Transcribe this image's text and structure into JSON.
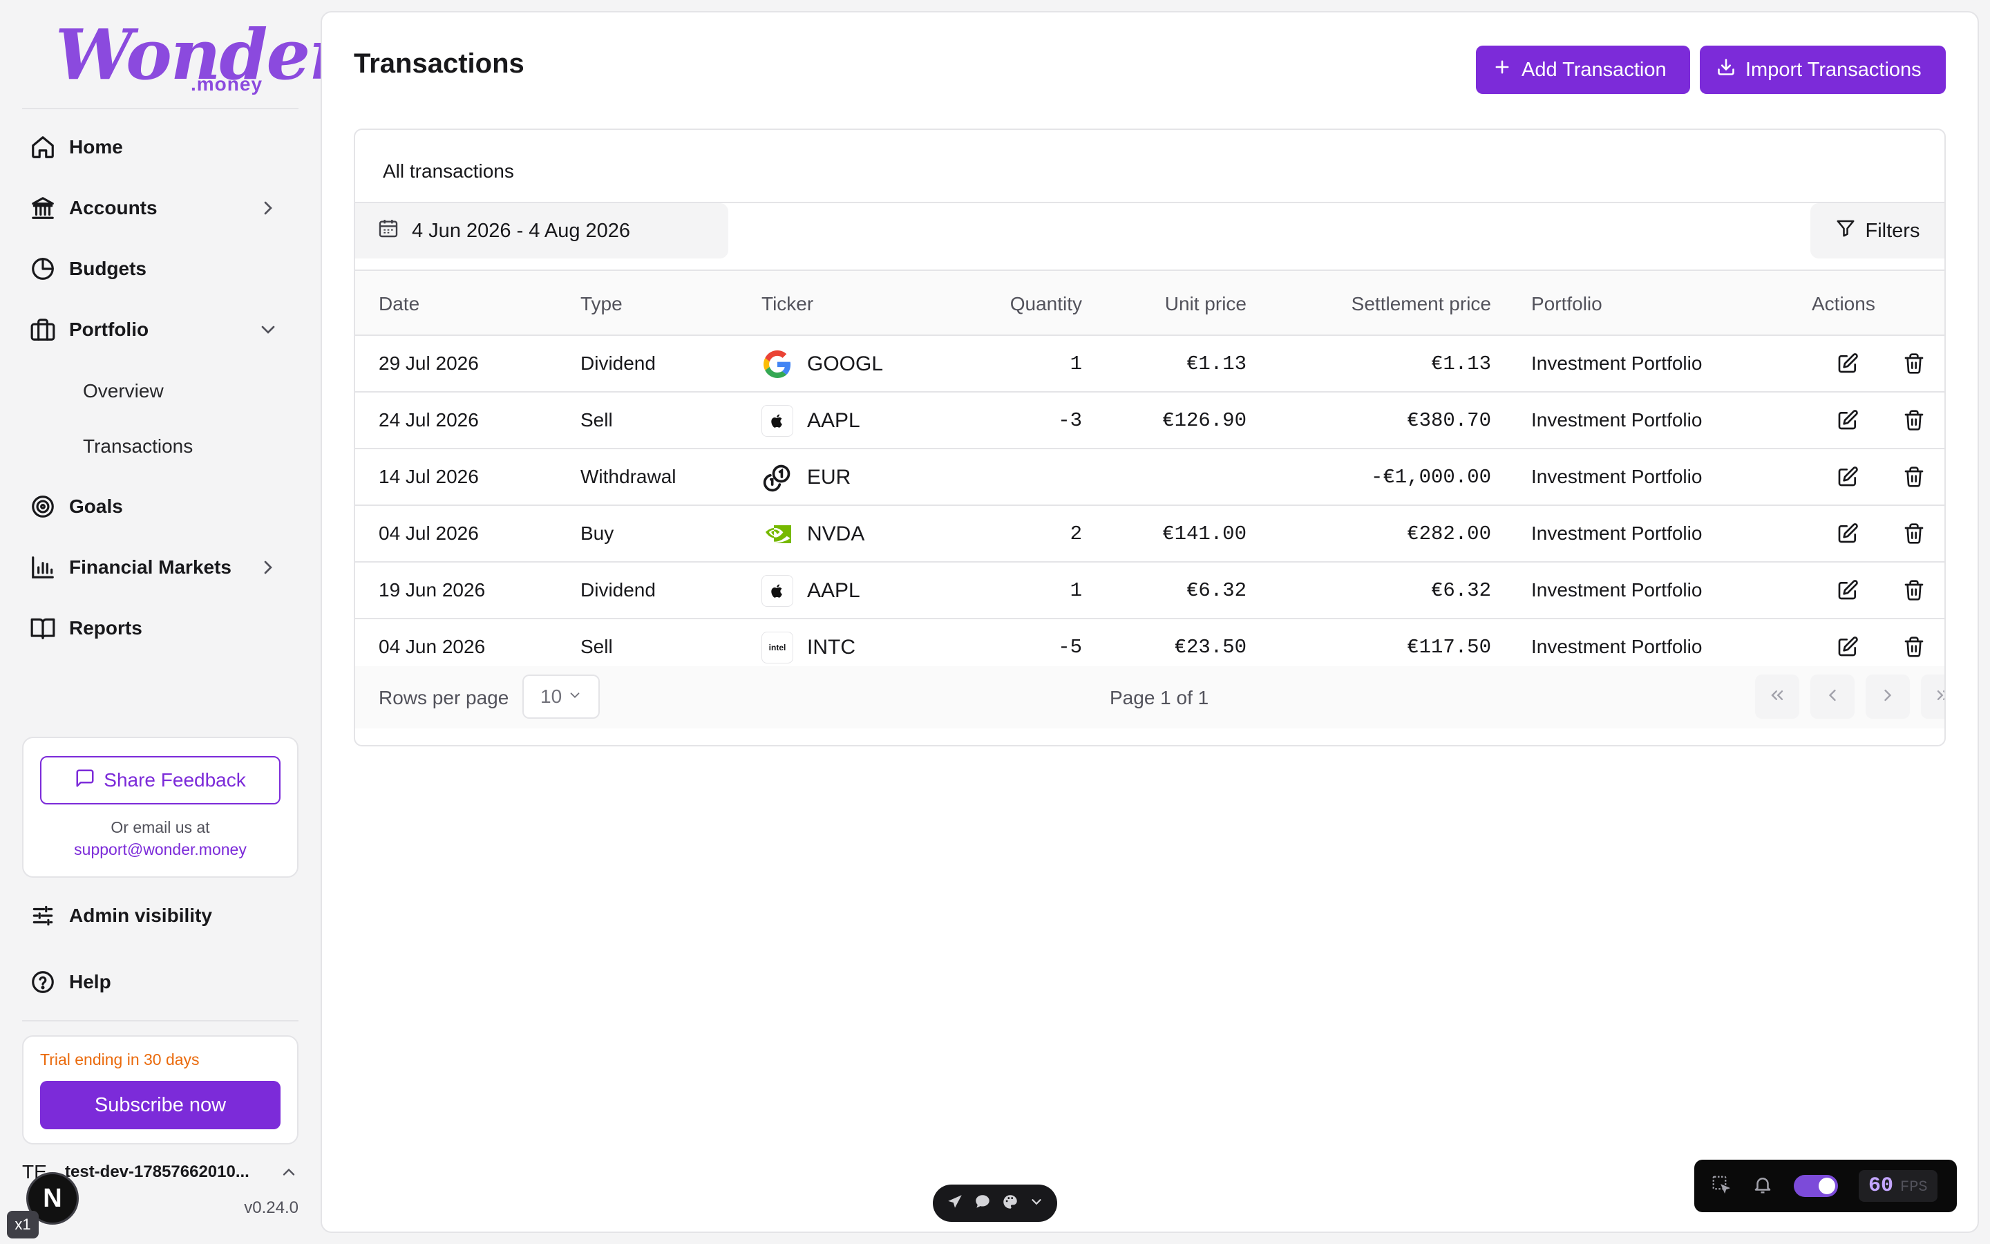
{
  "brand": {
    "logo_main": "Wonder",
    "logo_sub": ".money",
    "accent": "#7c2bd9"
  },
  "nav": {
    "home": "Home",
    "accounts": "Accounts",
    "budgets": "Budgets",
    "portfolio": "Portfolio",
    "portfolio_sub": [
      "Overview",
      "Transactions"
    ],
    "goals": "Goals",
    "financial_markets": "Financial Markets",
    "reports": "Reports",
    "admin_visibility": "Admin visibility",
    "help": "Help"
  },
  "feedback": {
    "button": "Share Feedback",
    "note": "Or email us at",
    "email": "support@wonder.money"
  },
  "trial": {
    "text": "Trial ending in 30 days",
    "button": "Subscribe now"
  },
  "user": {
    "initials": "TE",
    "name": "test-dev-17857662010...",
    "version": "v0.24.0"
  },
  "header": {
    "title": "Transactions",
    "add_button": "Add Transaction",
    "import_button": "Import Transactions"
  },
  "table_card": {
    "title": "All transactions",
    "date_range": "4 Jun 2026 - 4 Aug 2026",
    "filters": "Filters",
    "columns": [
      "Date",
      "Type",
      "Ticker",
      "Quantity",
      "Unit price",
      "Settlement price",
      "Portfolio",
      "Actions"
    ],
    "rows": [
      {
        "date": "29 Jul 2026",
        "type": "Dividend",
        "ticker": "GOOGL",
        "logo": "google-logo",
        "quantity": "1",
        "unit_price": "€1.13",
        "settlement": "€1.13",
        "portfolio": "Investment Portfolio"
      },
      {
        "date": "24 Jul 2026",
        "type": "Sell",
        "ticker": "AAPL",
        "logo": "apple-logo",
        "quantity": "-3",
        "unit_price": "€126.90",
        "settlement": "€380.70",
        "portfolio": "Investment Portfolio"
      },
      {
        "date": "14 Jul 2026",
        "type": "Withdrawal",
        "ticker": "EUR",
        "logo": "coins-icon",
        "quantity": "",
        "unit_price": "",
        "settlement": "-€1,000.00",
        "portfolio": "Investment Portfolio"
      },
      {
        "date": "04 Jul 2026",
        "type": "Buy",
        "ticker": "NVDA",
        "logo": "nvidia-logo",
        "quantity": "2",
        "unit_price": "€141.00",
        "settlement": "€282.00",
        "portfolio": "Investment Portfolio"
      },
      {
        "date": "19 Jun 2026",
        "type": "Dividend",
        "ticker": "AAPL",
        "logo": "apple-logo",
        "quantity": "1",
        "unit_price": "€6.32",
        "settlement": "€6.32",
        "portfolio": "Investment Portfolio"
      },
      {
        "date": "04 Jun 2026",
        "type": "Sell",
        "ticker": "INTC",
        "logo": "intel-logo",
        "quantity": "-5",
        "unit_price": "€23.50",
        "settlement": "€117.50",
        "portfolio": "Investment Portfolio"
      }
    ],
    "rows_per_page_label": "Rows per page",
    "rows_per_page_value": "10",
    "page_info": "Page 1 of 1"
  },
  "devtools": {
    "badge": "N",
    "speed": "x1",
    "fps": "60",
    "fps_label": "FPS"
  }
}
